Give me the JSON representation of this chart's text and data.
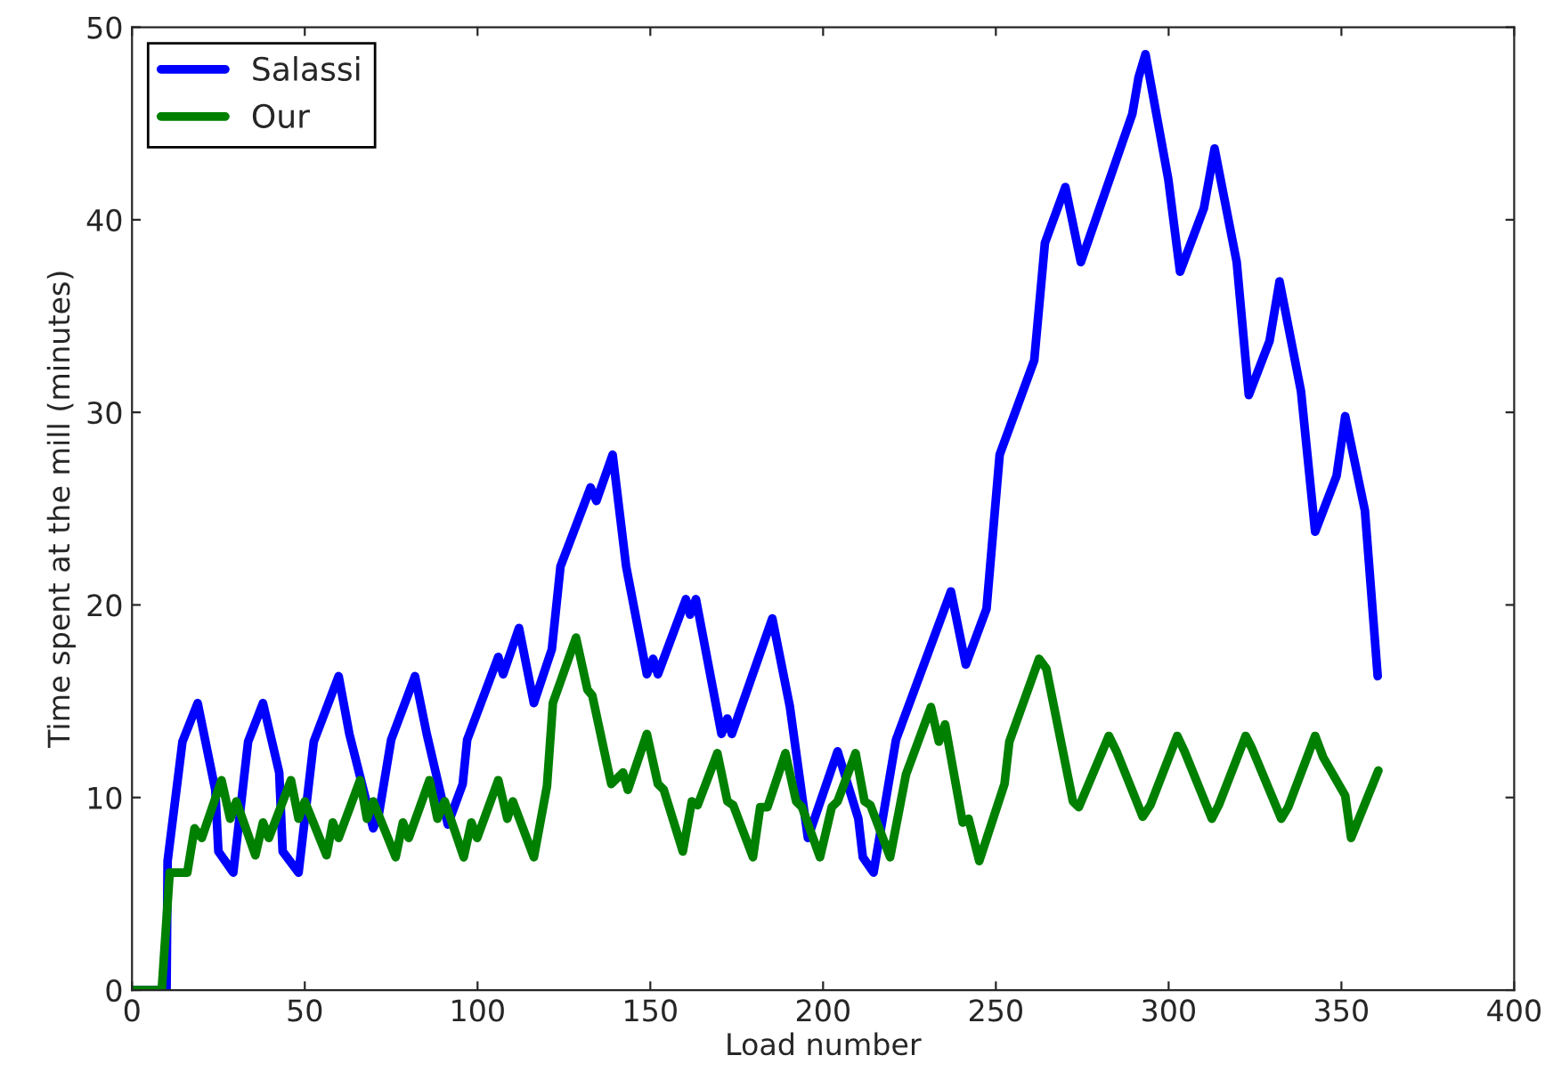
{
  "chart_data": {
    "type": "line",
    "xlabel": "Load number",
    "ylabel": "Time spent at the mill (minutes)",
    "xlim": [
      0,
      400
    ],
    "ylim": [
      0,
      50
    ],
    "xticks": [
      0,
      50,
      100,
      150,
      200,
      250,
      300,
      350,
      400
    ],
    "yticks": [
      0,
      10,
      20,
      30,
      40,
      50
    ],
    "grid": false,
    "legend": "top left",
    "line_style": "solid",
    "marker": "none",
    "series": [
      {
        "name": "Salassi",
        "color": "#0000ff",
        "x": [
          0,
          10,
          10.3,
          14.6,
          19,
          24.1,
          25,
          29.3,
          33.6,
          37.9,
          42.6,
          43.6,
          48.2,
          52.6,
          59.8,
          62.9,
          69.8,
          71.5,
          75,
          81.9,
          85.3,
          91.4,
          95.7,
          97,
          106,
          107.4,
          112,
          116.3,
          121.5,
          124,
          132.7,
          134.4,
          139.1,
          143,
          149,
          150.8,
          152.2,
          160.3,
          161.5,
          163.2,
          170.6,
          172.3,
          173.6,
          185.3,
          190.4,
          195.6,
          204.2,
          210.2,
          211.5,
          214.6,
          221.1,
          237,
          241.3,
          247.3,
          251.1,
          261.1,
          264.2,
          270.1,
          274.6,
          289.5,
          291.3,
          293.3,
          299.9,
          303.3,
          310.2,
          313.3,
          319.7,
          323.2,
          329.2,
          332.1,
          338.3,
          342.4,
          348.6,
          351.1,
          356.8,
          360.5
        ],
        "values": [
          0,
          0,
          6.7,
          12.9,
          14.9,
          10.4,
          7.2,
          6.1,
          12.9,
          14.9,
          11.3,
          7.2,
          6.1,
          12.9,
          16.3,
          13.3,
          8.4,
          9.2,
          13,
          16.3,
          13.3,
          8.6,
          10.7,
          13,
          17.3,
          16.4,
          18.8,
          14.9,
          17.7,
          22,
          26.1,
          25.4,
          27.8,
          22,
          16.4,
          17.2,
          16.4,
          20.3,
          19.5,
          20.3,
          13.3,
          14.1,
          13.3,
          19.3,
          14.7,
          7.9,
          12.4,
          8.9,
          6.9,
          6.1,
          13,
          20.7,
          16.9,
          19.8,
          27.8,
          32.7,
          38.8,
          41.7,
          37.8,
          45.5,
          47.4,
          48.6,
          42.1,
          37.3,
          40.6,
          43.7,
          37.8,
          30.9,
          33.7,
          36.8,
          31.1,
          23.8,
          26.7,
          29.8,
          24.9,
          16.3
        ]
      },
      {
        "name": "Our",
        "color": "#008000",
        "x": [
          0,
          8.6,
          10.9,
          16,
          18.1,
          20.2,
          25.9,
          28.4,
          30.2,
          35.7,
          37.9,
          39.6,
          46,
          48.2,
          50,
          56.3,
          58.1,
          59.8,
          66,
          68,
          69.8,
          76.3,
          78.4,
          80.1,
          86.1,
          88.4,
          90.5,
          96,
          98.2,
          99.9,
          106,
          108.6,
          110.2,
          116.3,
          120.1,
          121.8,
          128.5,
          131.8,
          133.2,
          138.7,
          142.1,
          143.5,
          149,
          152.2,
          153.9,
          159.4,
          162,
          163.7,
          169.4,
          172.3,
          174,
          179.7,
          181.8,
          183.9,
          189.1,
          192.2,
          193.9,
          199.1,
          202.5,
          204.2,
          209.4,
          212,
          213.7,
          219.4,
          224,
          231.2,
          233.5,
          235.3,
          240.4,
          242.1,
          245.2,
          252.5,
          253.9,
          262.5,
          264.6,
          272.3,
          274,
          282.7,
          284.9,
          292.5,
          294.7,
          302.5,
          304.6,
          312.5,
          314.5,
          322.3,
          324,
          332.6,
          334.6,
          342.4,
          344.7,
          351.1,
          352.8,
          360.7
        ],
        "values": [
          0,
          0,
          6.1,
          6.1,
          8.4,
          7.9,
          10.9,
          8.9,
          9.8,
          7,
          8.7,
          7.9,
          10.9,
          8.9,
          9.8,
          7,
          8.7,
          7.9,
          10.9,
          8.9,
          9.8,
          6.9,
          8.7,
          7.9,
          10.9,
          8.9,
          9.8,
          6.9,
          8.7,
          7.9,
          10.9,
          8.9,
          9.8,
          6.9,
          10.6,
          14.9,
          18.3,
          15.6,
          15.3,
          10.7,
          11.3,
          10.4,
          13.3,
          10.7,
          10.4,
          7.2,
          9.8,
          9.6,
          12.3,
          9.8,
          9.6,
          6.9,
          9.5,
          9.5,
          12.3,
          9.8,
          9.5,
          6.9,
          9.5,
          9.8,
          12.3,
          9.8,
          9.6,
          6.9,
          11.2,
          14.7,
          12.9,
          13.8,
          8.7,
          8.9,
          6.7,
          10.7,
          12.9,
          17.2,
          16.7,
          9.8,
          9.5,
          13.2,
          12.4,
          9,
          9.6,
          13.2,
          12.4,
          8.9,
          9.6,
          13.2,
          12.6,
          8.9,
          9.5,
          13.2,
          12.1,
          10.1,
          7.9,
          11.4
        ]
      }
    ]
  }
}
